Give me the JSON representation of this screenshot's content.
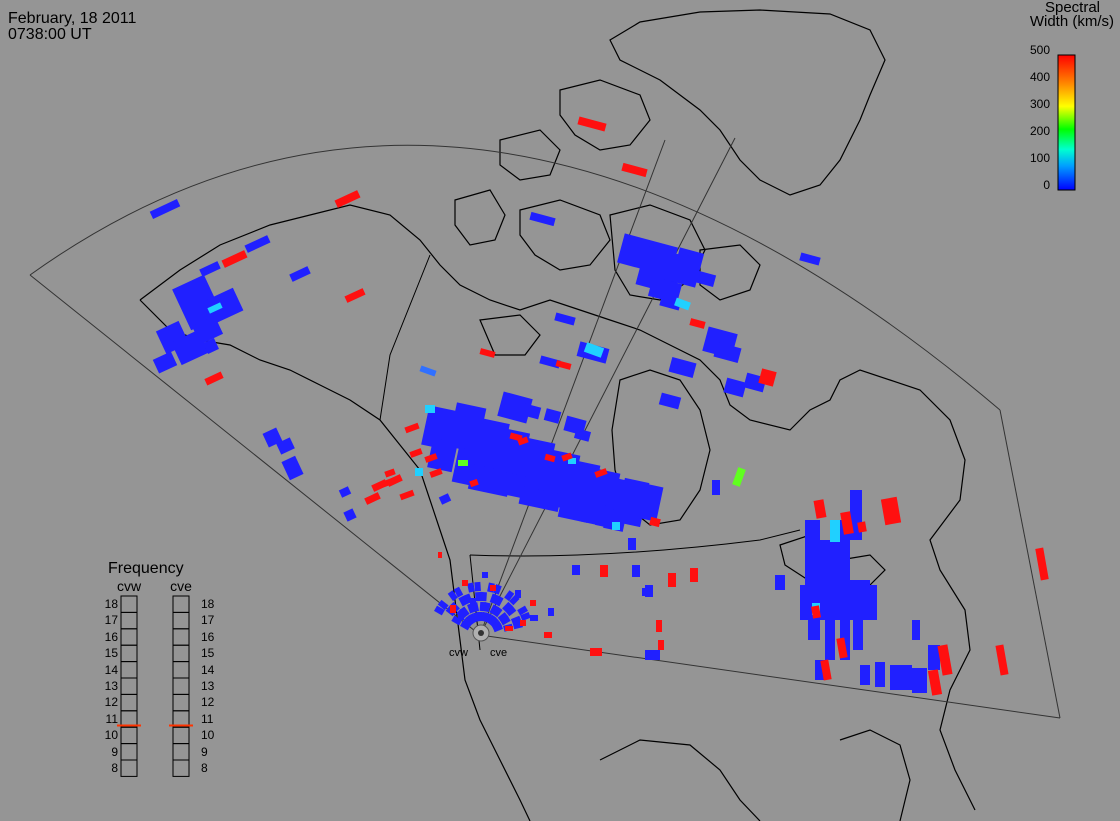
{
  "header": {
    "date": "February, 18 2011",
    "time": "0738:00 UT"
  },
  "colorbar": {
    "title_line1": "Spectral",
    "title_line2": "Width (km/s)",
    "ticks": [
      "500",
      "400",
      "300",
      "200",
      "100",
      "0"
    ],
    "range": [
      0,
      500
    ],
    "colors": [
      "#0000ff",
      "#00c0ff",
      "#00ffc0",
      "#00ff00",
      "#ffff00",
      "#ff8000",
      "#ff0000"
    ]
  },
  "frequency_panel": {
    "title": "Frequency",
    "columns": [
      {
        "label": "cvw",
        "selected": 11
      },
      {
        "label": "cve",
        "selected": 11
      }
    ],
    "levels": [
      "18",
      "17",
      "16",
      "15",
      "14",
      "13",
      "12",
      "11",
      "10",
      "9",
      "8"
    ],
    "marker_color": "#ff3300"
  },
  "stations": [
    {
      "label": "cvw"
    },
    {
      "label": "cve"
    }
  ],
  "colors": {
    "background": "#959595",
    "coastline": "#000000",
    "fov_outline": "#333333",
    "low_width": "#2020ff",
    "high_width": "#ff1010"
  }
}
